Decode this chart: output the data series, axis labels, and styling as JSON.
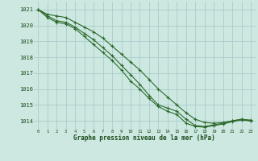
{
  "title": "Graphe pression niveau de la mer (hPa)",
  "background_color": "#cce8e0",
  "grid_color": "#aacccc",
  "line_color": "#2d6a2d",
  "xlim": [
    -0.5,
    23.5
  ],
  "ylim": [
    1013.5,
    1021.5
  ],
  "yticks": [
    1014,
    1015,
    1016,
    1017,
    1018,
    1019,
    1020,
    1021
  ],
  "xticks": [
    0,
    1,
    2,
    3,
    4,
    5,
    6,
    7,
    8,
    9,
    10,
    11,
    12,
    13,
    14,
    15,
    16,
    17,
    18,
    19,
    20,
    21,
    22,
    23
  ],
  "series": [
    [
      1021.0,
      1020.7,
      1020.6,
      1020.5,
      1020.2,
      1019.9,
      1019.6,
      1019.2,
      1018.7,
      1018.2,
      1017.7,
      1017.2,
      1016.6,
      1016.0,
      1015.5,
      1015.0,
      1014.5,
      1014.1,
      1013.9,
      1013.85,
      1013.9,
      1014.0,
      1014.1,
      1014.05
    ],
    [
      1021.0,
      1020.6,
      1020.3,
      1020.2,
      1019.9,
      1019.5,
      1019.1,
      1018.6,
      1018.1,
      1017.5,
      1016.9,
      1016.3,
      1015.6,
      1015.0,
      1014.8,
      1014.6,
      1014.1,
      1013.7,
      1013.65,
      1013.75,
      1013.85,
      1014.0,
      1014.1,
      1014.0
    ],
    [
      1021.0,
      1020.5,
      1020.2,
      1020.1,
      1019.8,
      1019.3,
      1018.8,
      1018.3,
      1017.8,
      1017.2,
      1016.5,
      1016.0,
      1015.4,
      1014.9,
      1014.6,
      1014.4,
      1013.85,
      1013.65,
      1013.6,
      1013.7,
      1013.8,
      1013.95,
      1014.05,
      1014.0
    ]
  ]
}
